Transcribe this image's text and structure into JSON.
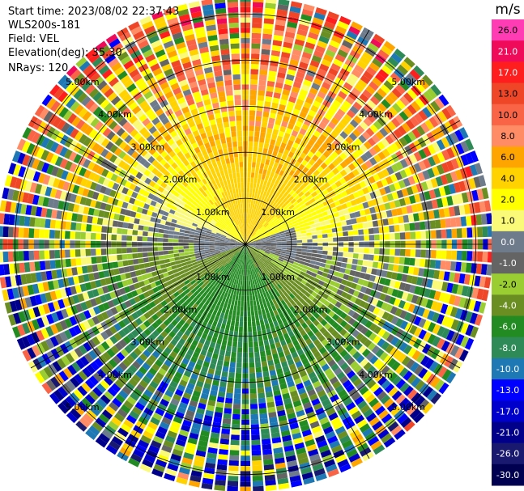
{
  "header": {
    "start_time": "Start time: 2023/08/02 22:37:43",
    "instrument": "WLS200s-181",
    "field": "Field: VEL",
    "elevation": "Elevation(deg): 35.30",
    "nrays": "NRays: 120"
  },
  "colorbar": {
    "unit_label": "m/s",
    "ticks": [
      "26.0",
      "21.0",
      "17.0",
      "13.0",
      "10.0",
      "8.0",
      "6.0",
      "4.0",
      "2.0",
      "1.0",
      "0.0",
      "-1.0",
      "-2.0",
      "-4.0",
      "-6.0",
      "-8.0",
      "-10.0",
      "-13.0",
      "-17.0",
      "-21.0",
      "-26.0",
      "-30.0"
    ],
    "colors": [
      "#ff3cb4",
      "#f00a5a",
      "#ff1e1e",
      "#f04628",
      "#fa6446",
      "#ff8c64",
      "#ffa500",
      "#ffd200",
      "#ffff00",
      "#fafa78",
      "#6e7b8b",
      "#646464",
      "#9acd32",
      "#6b8e23",
      "#228b22",
      "#2e8b57",
      "#1e78b4",
      "#0000ff",
      "#0000cd",
      "#00008b",
      "#191970",
      "#000050"
    ]
  },
  "chart_data": {
    "type": "ppi",
    "field": "VEL",
    "nrays": 120,
    "elevation_deg": 35.3,
    "range_rings": [
      {
        "distance_km": 1.0,
        "label": "1.00km"
      },
      {
        "distance_km": 2.0,
        "label": "2.00km"
      },
      {
        "distance_km": 3.0,
        "label": "3.00km"
      },
      {
        "distance_km": 4.0,
        "label": "4.00km"
      },
      {
        "distance_km": 5.0,
        "label": "5.00km"
      }
    ],
    "max_range_km": 5.0,
    "velocity_range": [
      -30.0,
      26.0
    ]
  }
}
